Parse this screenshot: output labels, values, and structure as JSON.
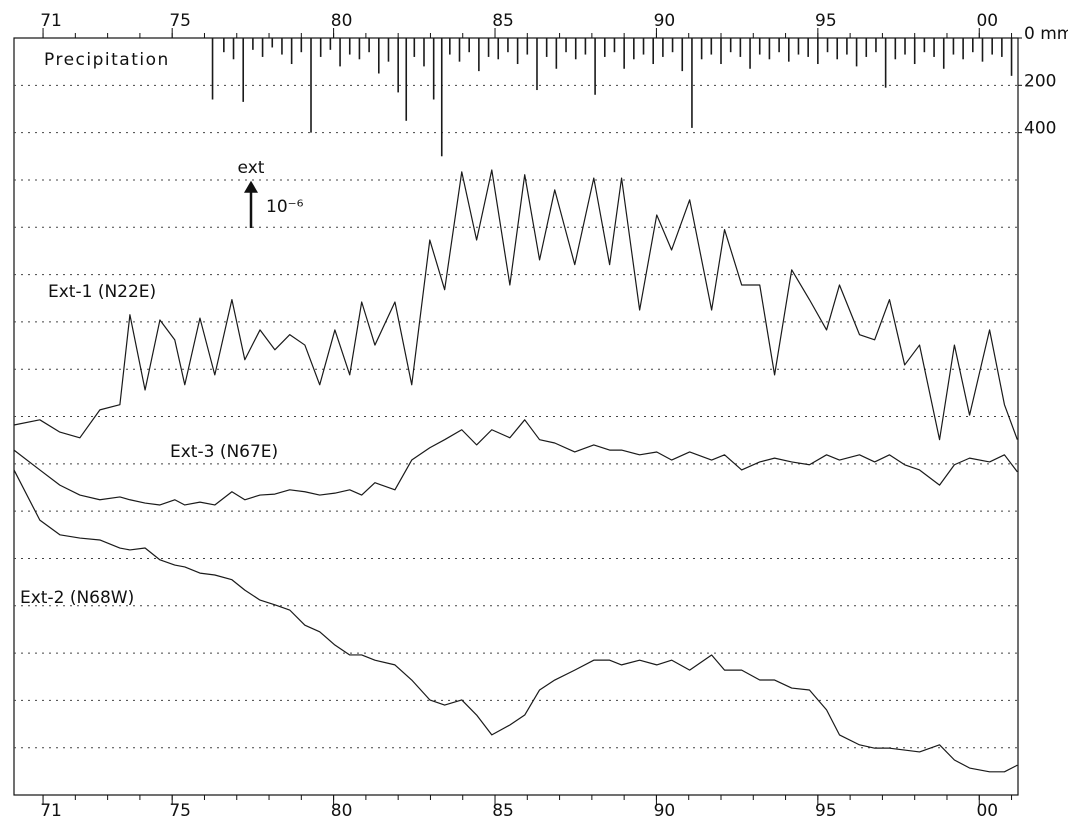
{
  "chart_data": {
    "type": "line",
    "xlim": [
      1970.1,
      2001.2
    ],
    "xticks": [
      {
        "value": 1971,
        "label": "71"
      },
      {
        "value": 1975,
        "label": "75"
      },
      {
        "value": 1980,
        "label": "80"
      },
      {
        "value": 1985,
        "label": "85"
      },
      {
        "value": 1990,
        "label": "90"
      },
      {
        "value": 1995,
        "label": "95"
      },
      {
        "value": 2000,
        "label": "00"
      }
    ],
    "ylim": [
      0,
      16
    ],
    "grid_lines": [
      1,
      2,
      3,
      4,
      5,
      6,
      7,
      8,
      9,
      10,
      11,
      12,
      13,
      14,
      15
    ],
    "y2lim": [
      0,
      3200
    ],
    "y2_inverted": true,
    "y2ticks": [
      {
        "value": 0,
        "label": "0 mm"
      },
      200,
      400
    ],
    "scale_bar": {
      "label": "ext",
      "unit": "10⁻⁶",
      "value": 1
    },
    "x": [
      1970.1,
      1970.9,
      1971.52,
      1972.14,
      1972.76,
      1973.38,
      1973.69,
      1974.16,
      1974.62,
      1975.08,
      1975.39,
      1975.86,
      1976.32,
      1976.85,
      1977.25,
      1977.72,
      1978.18,
      1978.64,
      1979.11,
      1979.57,
      1980.04,
      1980.5,
      1980.87,
      1981.28,
      1981.9,
      1982.42,
      1982.98,
      1983.44,
      1983.97,
      1984.43,
      1984.9,
      1985.46,
      1985.92,
      1986.38,
      1986.85,
      1987.47,
      1988.06,
      1988.55,
      1988.92,
      1989.48,
      1990.01,
      1990.47,
      1991.03,
      1991.71,
      1992.11,
      1992.64,
      1993.2,
      1993.66,
      1994.19,
      1994.74,
      1995.27,
      1995.67,
      1996.29,
      1996.76,
      1997.22,
      1997.69,
      1998.15,
      1998.77,
      1999.23,
      1999.7,
      2000.32,
      2000.78,
      2001.18
    ],
    "series": [
      {
        "name": "Precipitation",
        "type": "bar",
        "axis": "y2",
        "color": "#1a1a1a",
        "x": [
          1976.25,
          1976.6,
          1976.9,
          1977.2,
          1977.5,
          1977.8,
          1978.1,
          1978.4,
          1978.7,
          1979.0,
          1979.3,
          1979.6,
          1979.9,
          1980.2,
          1980.5,
          1980.8,
          1981.1,
          1981.4,
          1981.7,
          1982.0,
          1982.25,
          1982.5,
          1982.8,
          1983.1,
          1983.35,
          1983.6,
          1983.9,
          1984.2,
          1984.5,
          1984.8,
          1985.1,
          1985.4,
          1985.7,
          1986.0,
          1986.3,
          1986.6,
          1986.9,
          1987.2,
          1987.5,
          1987.8,
          1988.1,
          1988.4,
          1988.7,
          1989.0,
          1989.3,
          1989.6,
          1989.9,
          1990.2,
          1990.5,
          1990.8,
          1991.1,
          1991.4,
          1991.7,
          1992.0,
          1992.3,
          1992.6,
          1992.9,
          1993.2,
          1993.5,
          1993.8,
          1994.1,
          1994.4,
          1994.7,
          1995.0,
          1995.3,
          1995.6,
          1995.9,
          1996.2,
          1996.5,
          1996.8,
          1997.1,
          1997.4,
          1997.7,
          1998.0,
          1998.3,
          1998.6,
          1998.9,
          1999.2,
          1999.5,
          1999.8,
          2000.1,
          2000.4,
          2000.7,
          2001.0
        ],
        "values": [
          260,
          60,
          90,
          270,
          50,
          80,
          40,
          70,
          110,
          60,
          400,
          80,
          50,
          120,
          70,
          90,
          60,
          150,
          100,
          230,
          350,
          80,
          120,
          260,
          500,
          70,
          100,
          60,
          140,
          80,
          90,
          60,
          110,
          70,
          220,
          80,
          130,
          60,
          90,
          70,
          240,
          80,
          60,
          130,
          90,
          70,
          110,
          80,
          60,
          140,
          380,
          90,
          70,
          110,
          60,
          80,
          130,
          70,
          90,
          60,
          100,
          70,
          80,
          110,
          60,
          90,
          70,
          120,
          80,
          60,
          210,
          90,
          70,
          110,
          60,
          80,
          130,
          70,
          90,
          60,
          100,
          70,
          80,
          160
        ]
      },
      {
        "name": "Ext-1 (N22E)",
        "color": "#1a1a1a",
        "values": [
          7.82,
          7.93,
          7.67,
          7.55,
          8.14,
          8.25,
          10.15,
          8.56,
          10.04,
          9.62,
          8.67,
          10.08,
          8.88,
          10.47,
          9.2,
          9.83,
          9.41,
          9.73,
          9.51,
          8.67,
          9.83,
          8.88,
          10.42,
          9.51,
          10.42,
          8.67,
          11.73,
          10.68,
          13.17,
          11.73,
          13.21,
          10.78,
          13.11,
          11.31,
          12.79,
          11.21,
          13.04,
          11.21,
          13.04,
          10.25,
          12.26,
          11.52,
          12.58,
          10.25,
          11.95,
          10.78,
          10.78,
          8.88,
          11.1,
          10.47,
          9.83,
          10.78,
          9.73,
          9.62,
          10.47,
          9.09,
          9.51,
          7.51,
          9.51,
          8.03,
          9.83,
          8.25,
          7.51
        ]
      },
      {
        "name": "Ext-3 (N67E)",
        "color": "#1a1a1a",
        "values": [
          7.29,
          6.87,
          6.55,
          6.34,
          6.24,
          6.3,
          6.24,
          6.17,
          6.13,
          6.24,
          6.13,
          6.19,
          6.13,
          6.41,
          6.24,
          6.34,
          6.36,
          6.45,
          6.41,
          6.34,
          6.38,
          6.45,
          6.34,
          6.6,
          6.45,
          7.08,
          7.34,
          7.51,
          7.72,
          7.4,
          7.72,
          7.55,
          7.93,
          7.51,
          7.44,
          7.25,
          7.4,
          7.29,
          7.29,
          7.19,
          7.25,
          7.08,
          7.25,
          7.08,
          7.19,
          6.87,
          7.04,
          7.12,
          7.04,
          6.98,
          7.19,
          7.08,
          7.19,
          7.04,
          7.19,
          6.98,
          6.87,
          6.55,
          6.98,
          7.12,
          7.04,
          7.19,
          6.83
        ]
      },
      {
        "name": "Ext-2 (N68W)",
        "color": "#1a1a1a",
        "values": [
          6.87,
          5.81,
          5.5,
          5.43,
          5.39,
          5.22,
          5.18,
          5.22,
          4.97,
          4.86,
          4.82,
          4.69,
          4.65,
          4.55,
          4.33,
          4.12,
          4.02,
          3.91,
          3.59,
          3.45,
          3.17,
          2.96,
          2.96,
          2.85,
          2.75,
          2.43,
          2.01,
          1.9,
          2.01,
          1.69,
          1.27,
          1.48,
          1.69,
          2.22,
          2.43,
          2.64,
          2.85,
          2.85,
          2.75,
          2.85,
          2.75,
          2.85,
          2.64,
          2.96,
          2.64,
          2.64,
          2.43,
          2.43,
          2.26,
          2.22,
          1.8,
          1.27,
          1.06,
          0.99,
          0.99,
          0.95,
          0.91,
          1.06,
          0.74,
          0.57,
          0.49,
          0.49,
          0.63
        ]
      }
    ]
  }
}
